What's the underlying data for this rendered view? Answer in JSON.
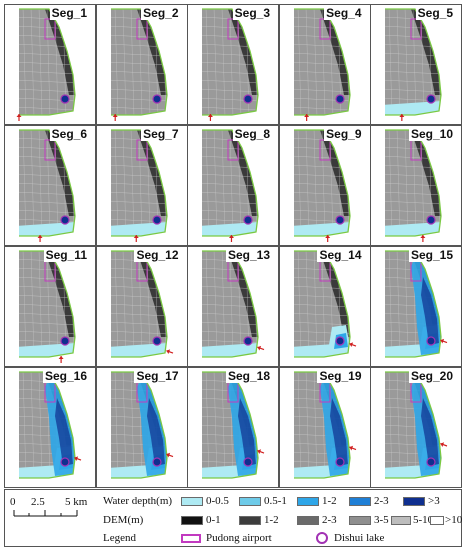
{
  "segments": [
    {
      "label": "Seg_1",
      "flood": 0
    },
    {
      "label": "Seg_2",
      "flood": 0
    },
    {
      "label": "Seg_3",
      "flood": 0
    },
    {
      "label": "Seg_4",
      "flood": 0
    },
    {
      "label": "Seg_5",
      "flood": 1
    },
    {
      "label": "Seg_6",
      "flood": 1
    },
    {
      "label": "Seg_7",
      "flood": 1
    },
    {
      "label": "Seg_8",
      "flood": 1
    },
    {
      "label": "Seg_9",
      "flood": 1
    },
    {
      "label": "Seg_10",
      "flood": 1
    },
    {
      "label": "Seg_11",
      "flood": 1
    },
    {
      "label": "Seg_12",
      "flood": 1
    },
    {
      "label": "Seg_13",
      "flood": 1
    },
    {
      "label": "Seg_14",
      "flood": 2
    },
    {
      "label": "Seg_15",
      "flood": 3
    },
    {
      "label": "Seg_16",
      "flood": 3
    },
    {
      "label": "Seg_17",
      "flood": 3
    },
    {
      "label": "Seg_18",
      "flood": 3
    },
    {
      "label": "Seg_19",
      "flood": 3
    },
    {
      "label": "Seg_20",
      "flood": 3
    }
  ],
  "scale": {
    "ticks": [
      "0",
      "2.5",
      "5 km"
    ]
  },
  "legend": {
    "water_depth_title": "Water depth(m)",
    "water_depth": [
      {
        "label": "0-0.5",
        "color": "#aeeaf3"
      },
      {
        "label": "0.5-1",
        "color": "#6ecbe9"
      },
      {
        "label": "1-2",
        "color": "#2ea6e8"
      },
      {
        "label": "2-3",
        "color": "#1f7fd6"
      },
      {
        "label": ">3",
        "color": "#0f2f8f"
      }
    ],
    "dem_title": "DEM(m)",
    "dem": [
      {
        "label": "0-1",
        "color": "#111111"
      },
      {
        "label": "1-2",
        "color": "#3c3c3c"
      },
      {
        "label": "2-3",
        "color": "#6a6a6a"
      },
      {
        "label": "3-5",
        "color": "#8f8f8f"
      },
      {
        "label": "5-10",
        "color": "#bdbdbd"
      },
      {
        "label": ">10",
        "color": "#ffffff"
      }
    ],
    "legend_title": "Legend",
    "airport": {
      "label": "Pudong airport",
      "color": "#c23ac0"
    },
    "lake": {
      "label": "Dishui lake",
      "color": "#a232b4"
    }
  },
  "colors": {
    "seawall": "#7ac943",
    "arrow": "#d11f1f",
    "flood_light": "#aeeaf3",
    "flood_mid": "#2ea6e8",
    "flood_deep": "#0f2f8f"
  }
}
